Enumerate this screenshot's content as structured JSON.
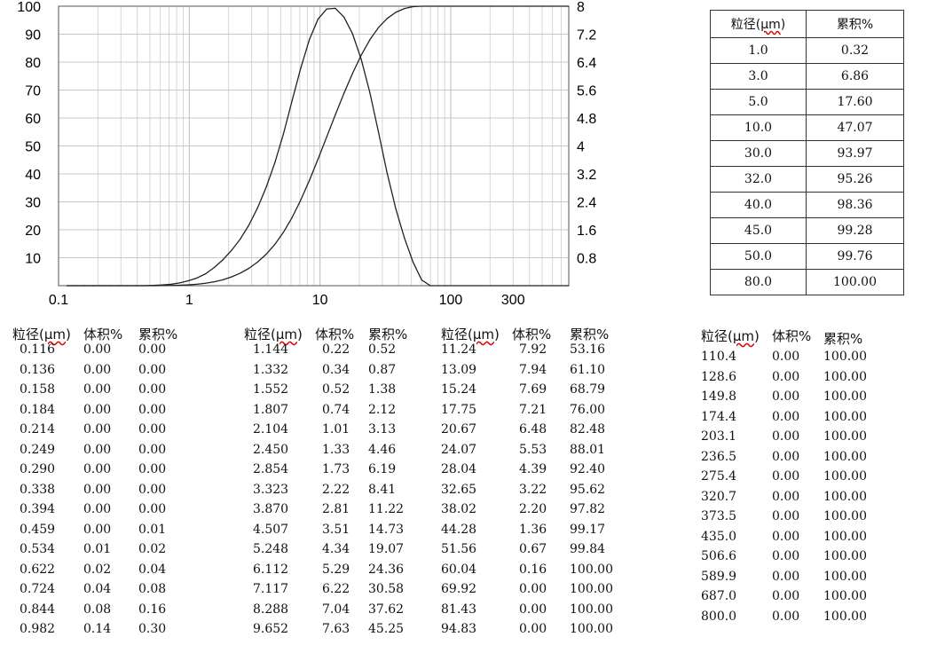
{
  "chart_data": {
    "type": "line",
    "x_scale": "log",
    "xlim": [
      0.1,
      800
    ],
    "x_tick_labels": [
      "0.1",
      "1",
      "10",
      "100",
      "300"
    ],
    "y_left_ticks": [
      "100",
      "90",
      "80",
      "70",
      "60",
      "50",
      "40",
      "30",
      "20",
      "10"
    ],
    "y_left_lim": [
      0,
      100
    ],
    "y_right_ticks": [
      "8",
      "7.2",
      "6.4",
      "5.6",
      "4.8",
      "4",
      "3.2",
      "2.4",
      "1.6",
      "0.8"
    ],
    "y_right_lim": [
      0,
      8
    ],
    "grid": true,
    "series": [
      {
        "axis": "right",
        "x": [
          0.116,
          0.136,
          0.158,
          0.184,
          0.214,
          0.249,
          0.29,
          0.338,
          0.394,
          0.459,
          0.534,
          0.622,
          0.724,
          0.844,
          0.982,
          1.144,
          1.332,
          1.552,
          1.807,
          2.104,
          2.45,
          2.854,
          3.323,
          3.87,
          4.507,
          5.248,
          6.112,
          7.117,
          8.288,
          9.652,
          11.24,
          13.09,
          15.24,
          17.75,
          20.67,
          24.07,
          28.04,
          32.65,
          38.02,
          44.28,
          51.56,
          60.04,
          69.92,
          81.43,
          94.83,
          110.4,
          128.6,
          149.8,
          174.4,
          203.1,
          236.5,
          275.4,
          320.7,
          373.5,
          435.0,
          506.6,
          589.9,
          687.0,
          800.0
        ],
        "y": [
          0,
          0,
          0,
          0,
          0,
          0,
          0,
          0,
          0,
          0,
          0.01,
          0.02,
          0.04,
          0.08,
          0.14,
          0.22,
          0.34,
          0.52,
          0.74,
          1.01,
          1.33,
          1.73,
          2.22,
          2.81,
          3.51,
          4.34,
          5.29,
          6.22,
          7.04,
          7.63,
          7.92,
          7.94,
          7.69,
          7.21,
          6.48,
          5.53,
          4.39,
          3.22,
          2.2,
          1.36,
          0.67,
          0.16,
          0,
          0,
          0,
          0,
          0,
          0,
          0,
          0,
          0,
          0,
          0,
          0,
          0,
          0,
          0,
          0,
          0
        ]
      },
      {
        "axis": "left",
        "x": [
          0.116,
          0.136,
          0.158,
          0.184,
          0.214,
          0.249,
          0.29,
          0.338,
          0.394,
          0.459,
          0.534,
          0.622,
          0.724,
          0.844,
          0.982,
          1.144,
          1.332,
          1.552,
          1.807,
          2.104,
          2.45,
          2.854,
          3.323,
          3.87,
          4.507,
          5.248,
          6.112,
          7.117,
          8.288,
          9.652,
          11.24,
          13.09,
          15.24,
          17.75,
          20.67,
          24.07,
          28.04,
          32.65,
          38.02,
          44.28,
          51.56,
          60.04,
          69.92,
          81.43,
          94.83,
          110.4,
          128.6,
          149.8,
          174.4,
          203.1,
          236.5,
          275.4,
          320.7,
          373.5,
          435.0,
          506.6,
          589.9,
          687.0,
          800.0
        ],
        "y": [
          0,
          0,
          0,
          0,
          0,
          0,
          0,
          0,
          0,
          0.01,
          0.02,
          0.04,
          0.08,
          0.16,
          0.3,
          0.52,
          0.87,
          1.38,
          2.12,
          3.13,
          4.46,
          6.19,
          8.41,
          11.22,
          14.73,
          19.07,
          24.36,
          30.58,
          37.62,
          45.25,
          53.16,
          61.1,
          68.79,
          76.0,
          82.48,
          88.01,
          92.4,
          95.62,
          97.82,
          99.17,
          99.84,
          100.0,
          100.0,
          100.0,
          100.0,
          100,
          100,
          100,
          100,
          100,
          100,
          100,
          100,
          100,
          100,
          100,
          100,
          100,
          100
        ]
      }
    ]
  },
  "summary_table": {
    "header_prefix": "粒径(",
    "header_unit": "μm",
    "header_suffix": ")",
    "header_cum": "累积%",
    "rows": [
      [
        "1.0",
        "0.32"
      ],
      [
        "3.0",
        "6.86"
      ],
      [
        "5.0",
        "17.60"
      ],
      [
        "10.0",
        "47.07"
      ],
      [
        "30.0",
        "93.97"
      ],
      [
        "32.0",
        "95.26"
      ],
      [
        "40.0",
        "98.36"
      ],
      [
        "45.0",
        "99.28"
      ],
      [
        "50.0",
        "99.76"
      ],
      [
        "80.0",
        "100.00"
      ]
    ]
  },
  "col_headers": {
    "size_prefix": "粒径(",
    "unit": "μm",
    "size_suffix": ")",
    "volume": "体积%",
    "cum": "累积%"
  },
  "blocks": [
    {
      "rows": [
        [
          "0.116",
          "0.00",
          "0.00"
        ],
        [
          "0.136",
          "0.00",
          "0.00"
        ],
        [
          "0.158",
          "0.00",
          "0.00"
        ],
        [
          "0.184",
          "0.00",
          "0.00"
        ],
        [
          "0.214",
          "0.00",
          "0.00"
        ],
        [
          "0.249",
          "0.00",
          "0.00"
        ],
        [
          "0.290",
          "0.00",
          "0.00"
        ],
        [
          "0.338",
          "0.00",
          "0.00"
        ],
        [
          "0.394",
          "0.00",
          "0.00"
        ],
        [
          "0.459",
          "0.00",
          "0.01"
        ],
        [
          "0.534",
          "0.01",
          "0.02"
        ],
        [
          "0.622",
          "0.02",
          "0.04"
        ],
        [
          "0.724",
          "0.04",
          "0.08"
        ],
        [
          "0.844",
          "0.08",
          "0.16"
        ],
        [
          "0.982",
          "0.14",
          "0.30"
        ]
      ]
    },
    {
      "rows": [
        [
          "1.144",
          "0.22",
          "0.52"
        ],
        [
          "1.332",
          "0.34",
          "0.87"
        ],
        [
          "1.552",
          "0.52",
          "1.38"
        ],
        [
          "1.807",
          "0.74",
          "2.12"
        ],
        [
          "2.104",
          "1.01",
          "3.13"
        ],
        [
          "2.450",
          "1.33",
          "4.46"
        ],
        [
          "2.854",
          "1.73",
          "6.19"
        ],
        [
          "3.323",
          "2.22",
          "8.41"
        ],
        [
          "3.870",
          "2.81",
          "11.22"
        ],
        [
          "4.507",
          "3.51",
          "14.73"
        ],
        [
          "5.248",
          "4.34",
          "19.07"
        ],
        [
          "6.112",
          "5.29",
          "24.36"
        ],
        [
          "7.117",
          "6.22",
          "30.58"
        ],
        [
          "8.288",
          "7.04",
          "37.62"
        ],
        [
          "9.652",
          "7.63",
          "45.25"
        ]
      ]
    },
    {
      "rows": [
        [
          "11.24",
          "7.92",
          "53.16"
        ],
        [
          "13.09",
          "7.94",
          "61.10"
        ],
        [
          "15.24",
          "7.69",
          "68.79"
        ],
        [
          "17.75",
          "7.21",
          "76.00"
        ],
        [
          "20.67",
          "6.48",
          "82.48"
        ],
        [
          "24.07",
          "5.53",
          "88.01"
        ],
        [
          "28.04",
          "4.39",
          "92.40"
        ],
        [
          "32.65",
          "3.22",
          "95.62"
        ],
        [
          "38.02",
          "2.20",
          "97.82"
        ],
        [
          "44.28",
          "1.36",
          "99.17"
        ],
        [
          "51.56",
          "0.67",
          "99.84"
        ],
        [
          "60.04",
          "0.16",
          "100.00"
        ],
        [
          "69.92",
          "0.00",
          "100.00"
        ],
        [
          "81.43",
          "0.00",
          "100.00"
        ],
        [
          "94.83",
          "0.00",
          "100.00"
        ]
      ]
    },
    {
      "rows": [
        [
          "110.4",
          "0.00",
          "100.00"
        ],
        [
          "128.6",
          "0.00",
          "100.00"
        ],
        [
          "149.8",
          "0.00",
          "100.00"
        ],
        [
          "174.4",
          "0.00",
          "100.00"
        ],
        [
          "203.1",
          "0.00",
          "100.00"
        ],
        [
          "236.5",
          "0.00",
          "100.00"
        ],
        [
          "275.4",
          "0.00",
          "100.00"
        ],
        [
          "320.7",
          "0.00",
          "100.00"
        ],
        [
          "373.5",
          "0.00",
          "100.00"
        ],
        [
          "435.0",
          "0.00",
          "100.00"
        ],
        [
          "506.6",
          "0.00",
          "100.00"
        ],
        [
          "589.9",
          "0.00",
          "100.00"
        ],
        [
          "687.0",
          "0.00",
          "100.00"
        ],
        [
          "800.0",
          "0.00",
          "100.00"
        ]
      ]
    }
  ]
}
